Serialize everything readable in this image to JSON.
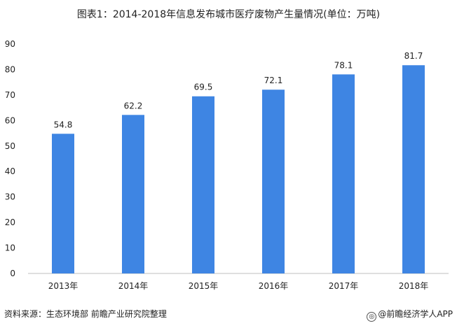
{
  "chart_data": {
    "type": "bar",
    "title": "图表1：2014-2018年信息发布城市医疗废物产生量情况(单位：万吨)",
    "categories": [
      "2013年",
      "2014年",
      "2015年",
      "2016年",
      "2017年",
      "2018年"
    ],
    "series": [
      {
        "values": [
          54.8,
          62.2,
          69.5,
          72.1,
          78.1,
          81.7
        ]
      }
    ],
    "data_labels": [
      "54.8",
      "62.2",
      "69.5",
      "72.1",
      "78.1",
      "81.7"
    ],
    "ylim": [
      0,
      90
    ],
    "yticks": [
      0,
      10,
      20,
      30,
      40,
      50,
      60,
      70,
      80,
      90
    ],
    "xlabel": "",
    "ylabel": "",
    "grid": false,
    "legend": "none",
    "bar_color": "#3E85E3"
  },
  "footer": {
    "source": "资料来源：生态环境部 前瞻产业研究院整理",
    "brand": "@前瞻经济学人APP"
  }
}
